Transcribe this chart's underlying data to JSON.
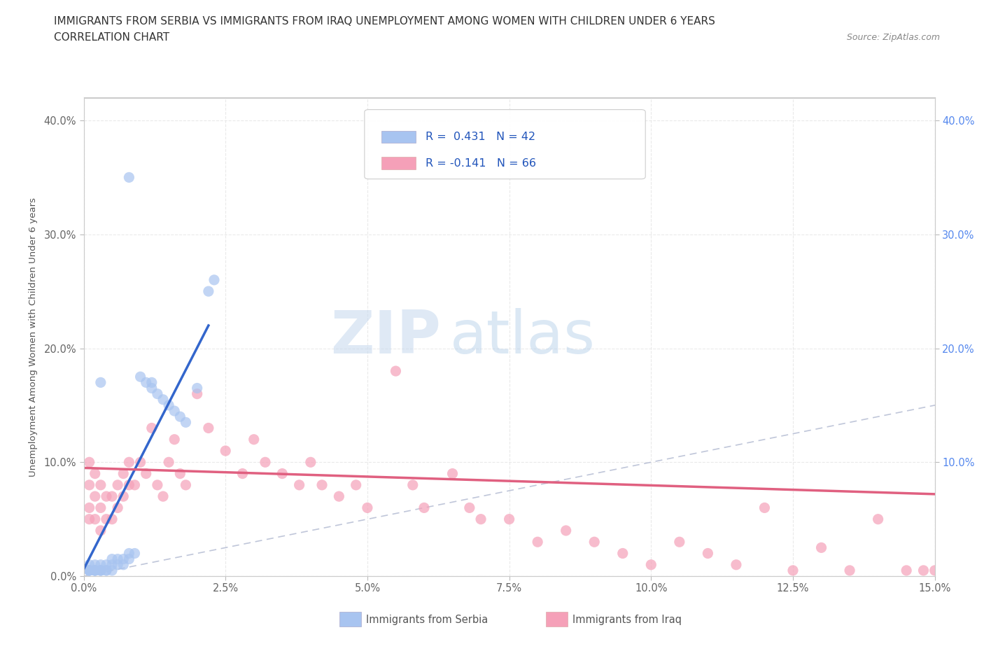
{
  "title_line1": "IMMIGRANTS FROM SERBIA VS IMMIGRANTS FROM IRAQ UNEMPLOYMENT AMONG WOMEN WITH CHILDREN UNDER 6 YEARS",
  "title_line2": "CORRELATION CHART",
  "source_text": "Source: ZipAtlas.com",
  "xlim": [
    0.0,
    0.15
  ],
  "ylim": [
    -0.02,
    0.42
  ],
  "yplot_min": 0.0,
  "yplot_max": 0.42,
  "watermark_zip": "ZIP",
  "watermark_atlas": "atlas",
  "serbia_color": "#a8c4f0",
  "iraq_color": "#f5a0b8",
  "serbia_line_color": "#3366cc",
  "iraq_line_color": "#e06080",
  "diagonal_color": "#b0b8d0",
  "background_color": "#ffffff",
  "grid_color": "#e8e8e8",
  "serbia_x": [
    0.001,
    0.001,
    0.001,
    0.001,
    0.001,
    0.002,
    0.002,
    0.002,
    0.002,
    0.002,
    0.003,
    0.003,
    0.003,
    0.003,
    0.004,
    0.004,
    0.004,
    0.005,
    0.005,
    0.005,
    0.006,
    0.006,
    0.007,
    0.007,
    0.008,
    0.008,
    0.009,
    0.01,
    0.011,
    0.012,
    0.013,
    0.014,
    0.015,
    0.016,
    0.017,
    0.018,
    0.02,
    0.022,
    0.023,
    0.003,
    0.012,
    0.008
  ],
  "serbia_y": [
    0.005,
    0.005,
    0.005,
    0.01,
    0.005,
    0.005,
    0.01,
    0.005,
    0.005,
    0.005,
    0.005,
    0.01,
    0.005,
    0.005,
    0.005,
    0.01,
    0.005,
    0.01,
    0.005,
    0.015,
    0.01,
    0.015,
    0.015,
    0.01,
    0.015,
    0.02,
    0.02,
    0.175,
    0.17,
    0.165,
    0.16,
    0.155,
    0.15,
    0.145,
    0.14,
    0.135,
    0.165,
    0.25,
    0.26,
    0.17,
    0.17,
    0.35
  ],
  "iraq_x": [
    0.001,
    0.001,
    0.001,
    0.001,
    0.002,
    0.002,
    0.002,
    0.003,
    0.003,
    0.003,
    0.004,
    0.004,
    0.005,
    0.005,
    0.006,
    0.006,
    0.007,
    0.007,
    0.008,
    0.008,
    0.009,
    0.01,
    0.011,
    0.012,
    0.013,
    0.014,
    0.015,
    0.016,
    0.017,
    0.018,
    0.02,
    0.022,
    0.025,
    0.028,
    0.03,
    0.032,
    0.035,
    0.038,
    0.04,
    0.042,
    0.045,
    0.048,
    0.05,
    0.055,
    0.058,
    0.06,
    0.065,
    0.068,
    0.07,
    0.075,
    0.08,
    0.085,
    0.09,
    0.095,
    0.1,
    0.105,
    0.11,
    0.115,
    0.12,
    0.125,
    0.13,
    0.135,
    0.14,
    0.145,
    0.148,
    0.15
  ],
  "iraq_y": [
    0.1,
    0.08,
    0.06,
    0.05,
    0.09,
    0.07,
    0.05,
    0.08,
    0.06,
    0.04,
    0.07,
    0.05,
    0.07,
    0.05,
    0.08,
    0.06,
    0.09,
    0.07,
    0.1,
    0.08,
    0.08,
    0.1,
    0.09,
    0.13,
    0.08,
    0.07,
    0.1,
    0.12,
    0.09,
    0.08,
    0.16,
    0.13,
    0.11,
    0.09,
    0.12,
    0.1,
    0.09,
    0.08,
    0.1,
    0.08,
    0.07,
    0.08,
    0.06,
    0.18,
    0.08,
    0.06,
    0.09,
    0.06,
    0.05,
    0.05,
    0.03,
    0.04,
    0.03,
    0.02,
    0.01,
    0.03,
    0.02,
    0.01,
    0.06,
    0.005,
    0.025,
    0.005,
    0.05,
    0.005,
    0.005,
    0.005
  ],
  "serbia_trend_x0": 0.0,
  "serbia_trend_x1": 0.022,
  "serbia_trend_y0": 0.006,
  "serbia_trend_y1": 0.22,
  "iraq_trend_x0": 0.0,
  "iraq_trend_x1": 0.15,
  "iraq_trend_y0": 0.095,
  "iraq_trend_y1": 0.072
}
